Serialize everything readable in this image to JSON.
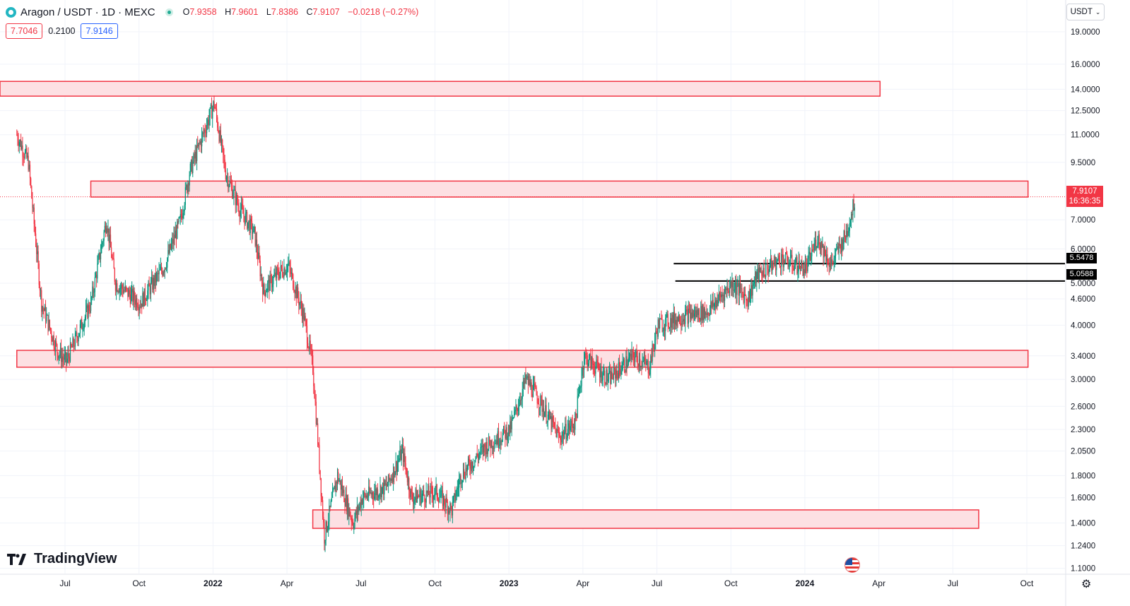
{
  "header": {
    "symbol_title": "Aragon / USDT · 1D · MEXC",
    "ohlc": [
      {
        "label": "O",
        "value": "7.9358"
      },
      {
        "label": "H",
        "value": "7.9601"
      },
      {
        "label": "L",
        "value": "7.8386"
      },
      {
        "label": "C",
        "value": "7.9107"
      }
    ],
    "change": "−0.0218 (−0.27%)",
    "bid": "7.7046",
    "spread": "0.2100",
    "ask": "7.9146"
  },
  "currency_button": "USDT",
  "last_price": "7.9107",
  "countdown": "16:36:35",
  "level_labels": [
    "5.5478",
    "5.0588"
  ],
  "branding": "TradingView",
  "icons": [
    "symbol-logo-icon",
    "market-status-icon",
    "chevron-down-icon",
    "tradingview-logo-icon",
    "us-flag-icon",
    "gear-icon"
  ],
  "colors": {
    "up": "#089981",
    "down": "#f23645",
    "zone_fill": "#fde0e3",
    "zone_border": "#f23645",
    "grid": "#f0f3fa"
  },
  "chart_data": {
    "type": "candlestick",
    "y_scale": "log",
    "ylim": [
      1.07,
      20.1
    ],
    "x_labels": [
      "Jul",
      "Oct",
      "2022",
      "Apr",
      "Jul",
      "Oct",
      "2023",
      "Apr",
      "Jul",
      "Oct",
      "2024",
      "Apr",
      "Jul",
      "Oct"
    ],
    "y_ticks": [
      "19.0000",
      "16.0000",
      "14.0000",
      "12.5000",
      "11.0000",
      "9.5000",
      "7.0000",
      "6.0000",
      "5.0000",
      "4.6000",
      "4.0000",
      "3.4000",
      "3.0000",
      "2.6000",
      "2.3000",
      "2.0500",
      "1.8000",
      "1.6000",
      "1.4000",
      "1.2400",
      "1.1000"
    ],
    "zones": [
      {
        "from": "2021-04",
        "to": "2024-04",
        "low": 13.5,
        "high": 14.6
      },
      {
        "from": "2021-08",
        "to": "2024-10",
        "low": 7.9,
        "high": 8.6
      },
      {
        "from": "2021-05",
        "to": "2024-10",
        "low": 3.2,
        "high": 3.5
      },
      {
        "from": "2022-05",
        "to": "2024-08",
        "low": 1.36,
        "high": 1.5
      }
    ],
    "lines": [
      5.5478,
      5.0588
    ],
    "series": [
      {
        "date": "2021-05",
        "price": 11.0
      },
      {
        "date": "2021-05-15",
        "price": 9.5
      },
      {
        "date": "2021-06",
        "price": 4.5
      },
      {
        "date": "2021-06-20",
        "price": 3.5
      },
      {
        "date": "2021-07",
        "price": 3.3
      },
      {
        "date": "2021-08",
        "price": 4.5
      },
      {
        "date": "2021-08-20",
        "price": 7.0
      },
      {
        "date": "2021-09",
        "price": 5.0
      },
      {
        "date": "2021-10",
        "price": 4.5
      },
      {
        "date": "2021-11",
        "price": 5.5
      },
      {
        "date": "2021-11-20",
        "price": 7.0
      },
      {
        "date": "2021-12",
        "price": 9.0
      },
      {
        "date": "2022-01",
        "price": 13.0
      },
      {
        "date": "2022-01-15",
        "price": 9.0
      },
      {
        "date": "2022-02",
        "price": 7.5
      },
      {
        "date": "2022-02-20",
        "price": 6.5
      },
      {
        "date": "2022-03",
        "price": 4.8
      },
      {
        "date": "2022-03-20",
        "price": 5.3
      },
      {
        "date": "2022-04",
        "price": 5.5
      },
      {
        "date": "2022-04-20",
        "price": 4.2
      },
      {
        "date": "2022-05",
        "price": 3.2
      },
      {
        "date": "2022-05-15",
        "price": 1.3
      },
      {
        "date": "2022-06",
        "price": 1.8
      },
      {
        "date": "2022-06-20",
        "price": 1.4
      },
      {
        "date": "2022-07",
        "price": 1.6
      },
      {
        "date": "2022-08",
        "price": 1.7
      },
      {
        "date": "2022-08-20",
        "price": 2.05
      },
      {
        "date": "2022-09",
        "price": 1.6
      },
      {
        "date": "2022-10",
        "price": 1.65
      },
      {
        "date": "2022-10-20",
        "price": 1.5
      },
      {
        "date": "2022-11",
        "price": 1.8
      },
      {
        "date": "2022-12",
        "price": 2.1
      },
      {
        "date": "2023-01",
        "price": 2.3
      },
      {
        "date": "2023-01-20",
        "price": 3.0
      },
      {
        "date": "2023-02",
        "price": 2.8
      },
      {
        "date": "2023-03",
        "price": 2.2
      },
      {
        "date": "2023-03-20",
        "price": 2.4
      },
      {
        "date": "2023-04",
        "price": 3.4
      },
      {
        "date": "2023-05",
        "price": 3.0
      },
      {
        "date": "2023-06",
        "price": 3.4
      },
      {
        "date": "2023-06-20",
        "price": 3.2
      },
      {
        "date": "2023-07",
        "price": 4.0
      },
      {
        "date": "2023-08",
        "price": 4.2
      },
      {
        "date": "2023-09",
        "price": 4.3
      },
      {
        "date": "2023-10",
        "price": 5.0
      },
      {
        "date": "2023-10-20",
        "price": 4.6
      },
      {
        "date": "2023-11",
        "price": 5.2
      },
      {
        "date": "2023-12",
        "price": 5.7
      },
      {
        "date": "2023-12-20",
        "price": 5.5
      },
      {
        "date": "2024-01",
        "price": 5.4
      },
      {
        "date": "2024-01-15",
        "price": 6.4
      },
      {
        "date": "2024-02",
        "price": 5.5
      },
      {
        "date": "2024-02-20",
        "price": 6.5
      },
      {
        "date": "2024-03",
        "price": 7.9107
      }
    ]
  }
}
